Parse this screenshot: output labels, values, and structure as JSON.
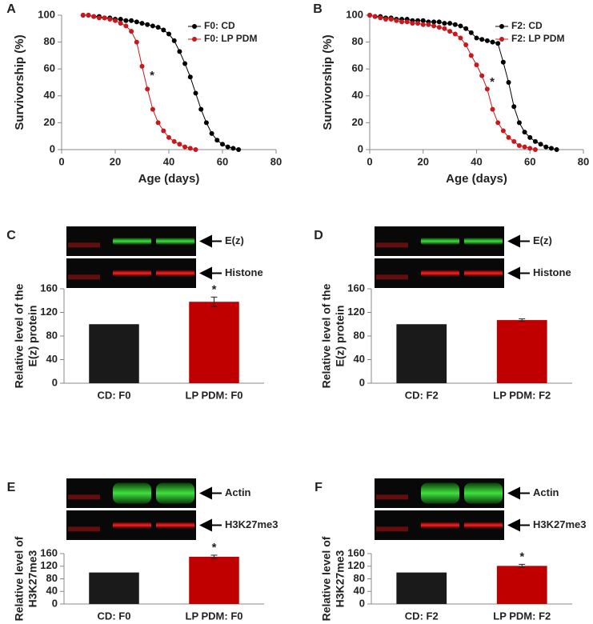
{
  "chart_data": [
    {
      "type": "line",
      "panel": "A",
      "xlabel": "Age (days)",
      "ylabel": "Survivorship (%)",
      "xlim": [
        0,
        80
      ],
      "xticks": [
        0,
        20,
        40,
        60,
        80
      ],
      "ylim": [
        0,
        100
      ],
      "yticks": [
        0,
        20,
        40,
        60,
        80,
        100
      ],
      "legend": "upper right",
      "annotation": "*",
      "series": [
        {
          "name": "F0: CD",
          "color": "#000000",
          "x": [
            8,
            10,
            12,
            14,
            16,
            18,
            20,
            22,
            24,
            26,
            28,
            30,
            32,
            34,
            36,
            38,
            40,
            42,
            44,
            46,
            48,
            50,
            52,
            54,
            56,
            58,
            60,
            62,
            64,
            66
          ],
          "values": [
            100,
            100,
            99,
            99,
            98,
            98,
            97,
            97,
            96,
            96,
            95,
            94,
            93,
            92,
            91,
            89,
            86,
            81,
            73,
            64,
            54,
            42,
            30,
            20,
            12,
            7,
            4,
            2,
            1,
            0
          ]
        },
        {
          "name": "F0: LP PDM",
          "color": "#c8181e",
          "x": [
            8,
            10,
            12,
            14,
            16,
            18,
            20,
            22,
            24,
            26,
            28,
            30,
            32,
            34,
            36,
            38,
            40,
            42,
            44,
            46,
            48,
            50
          ],
          "values": [
            100,
            100,
            99,
            98,
            98,
            97,
            96,
            94,
            92,
            88,
            80,
            62,
            45,
            30,
            20,
            14,
            9,
            6,
            4,
            2,
            1,
            0
          ]
        }
      ]
    },
    {
      "type": "line",
      "panel": "B",
      "xlabel": "Age (days)",
      "ylabel": "Survivorship (%)",
      "xlim": [
        0,
        80
      ],
      "xticks": [
        0,
        20,
        40,
        60,
        80
      ],
      "ylim": [
        0,
        100
      ],
      "yticks": [
        0,
        20,
        40,
        60,
        80,
        100
      ],
      "legend": "upper right",
      "annotation": "*",
      "series": [
        {
          "name": "F2: CD",
          "color": "#000000",
          "x": [
            0,
            2,
            4,
            6,
            8,
            10,
            12,
            14,
            16,
            18,
            20,
            22,
            24,
            26,
            28,
            30,
            32,
            34,
            36,
            38,
            40,
            42,
            44,
            46,
            48,
            50,
            52,
            54,
            56,
            58,
            60,
            62,
            64,
            66,
            68,
            70
          ],
          "values": [
            100,
            99,
            99,
            98,
            98,
            97,
            97,
            97,
            96,
            96,
            96,
            95,
            95,
            95,
            94,
            94,
            93,
            92,
            90,
            87,
            83,
            82,
            81,
            80,
            79,
            65,
            50,
            32,
            20,
            13,
            9,
            6,
            4,
            2,
            1,
            0
          ]
        },
        {
          "name": "F2: LP PDM",
          "color": "#c8181e",
          "x": [
            0,
            2,
            4,
            6,
            8,
            10,
            12,
            14,
            16,
            18,
            20,
            22,
            24,
            26,
            28,
            30,
            32,
            34,
            36,
            38,
            40,
            42,
            44,
            46,
            48,
            50,
            52,
            54,
            56,
            58,
            60,
            62
          ],
          "values": [
            100,
            99,
            98,
            97,
            97,
            96,
            95,
            95,
            94,
            94,
            93,
            93,
            92,
            91,
            90,
            88,
            86,
            83,
            78,
            70,
            63,
            55,
            45,
            30,
            20,
            14,
            9,
            6,
            3,
            2,
            1,
            0
          ]
        }
      ]
    },
    {
      "type": "bar",
      "panel": "C",
      "ylabel": [
        "Relative level of the",
        "E(z) protein"
      ],
      "blot_labels": [
        "E(z)",
        "Histone"
      ],
      "categories": [
        "CD: F0",
        "LP PDM: F0"
      ],
      "values": [
        100,
        138
      ],
      "errors": [
        0,
        8
      ],
      "colors": [
        "#1a1a1a",
        "#c00000"
      ],
      "ylim": [
        0,
        160
      ],
      "yticks": [
        0,
        40,
        80,
        120,
        160
      ],
      "annotation": "*"
    },
    {
      "type": "bar",
      "panel": "D",
      "ylabel": [
        "Relative level of the",
        "E(z) protein"
      ],
      "blot_labels": [
        "E(z)",
        "Histone"
      ],
      "categories": [
        "CD: F2",
        "LP PDM: F2"
      ],
      "values": [
        100,
        107
      ],
      "errors": [
        0,
        2
      ],
      "colors": [
        "#1a1a1a",
        "#c00000"
      ],
      "ylim": [
        0,
        160
      ],
      "yticks": [
        0,
        40,
        80,
        120,
        160
      ]
    },
    {
      "type": "bar",
      "panel": "E",
      "ylabel": [
        "Relative level of",
        "H3K27me3"
      ],
      "blot_labels": [
        "Actin",
        "H3K27me3"
      ],
      "categories": [
        "CD: F0",
        "LP PDM: F0"
      ],
      "values": [
        100,
        150
      ],
      "errors": [
        0,
        5
      ],
      "colors": [
        "#1a1a1a",
        "#c00000"
      ],
      "ylim": [
        0,
        160
      ],
      "yticks": [
        0,
        40,
        80,
        120,
        160
      ],
      "annotation": "*"
    },
    {
      "type": "bar",
      "panel": "F",
      "ylabel": [
        "Relative level of",
        "H3K27me3"
      ],
      "blot_labels": [
        "Actin",
        "H3K27me3"
      ],
      "categories": [
        "CD: F2",
        "LP PDM: F2"
      ],
      "values": [
        100,
        121
      ],
      "errors": [
        0,
        5
      ],
      "colors": [
        "#1a1a1a",
        "#c00000"
      ],
      "ylim": [
        0,
        160
      ],
      "yticks": [
        0,
        40,
        80,
        120,
        160
      ],
      "annotation": "*"
    }
  ]
}
